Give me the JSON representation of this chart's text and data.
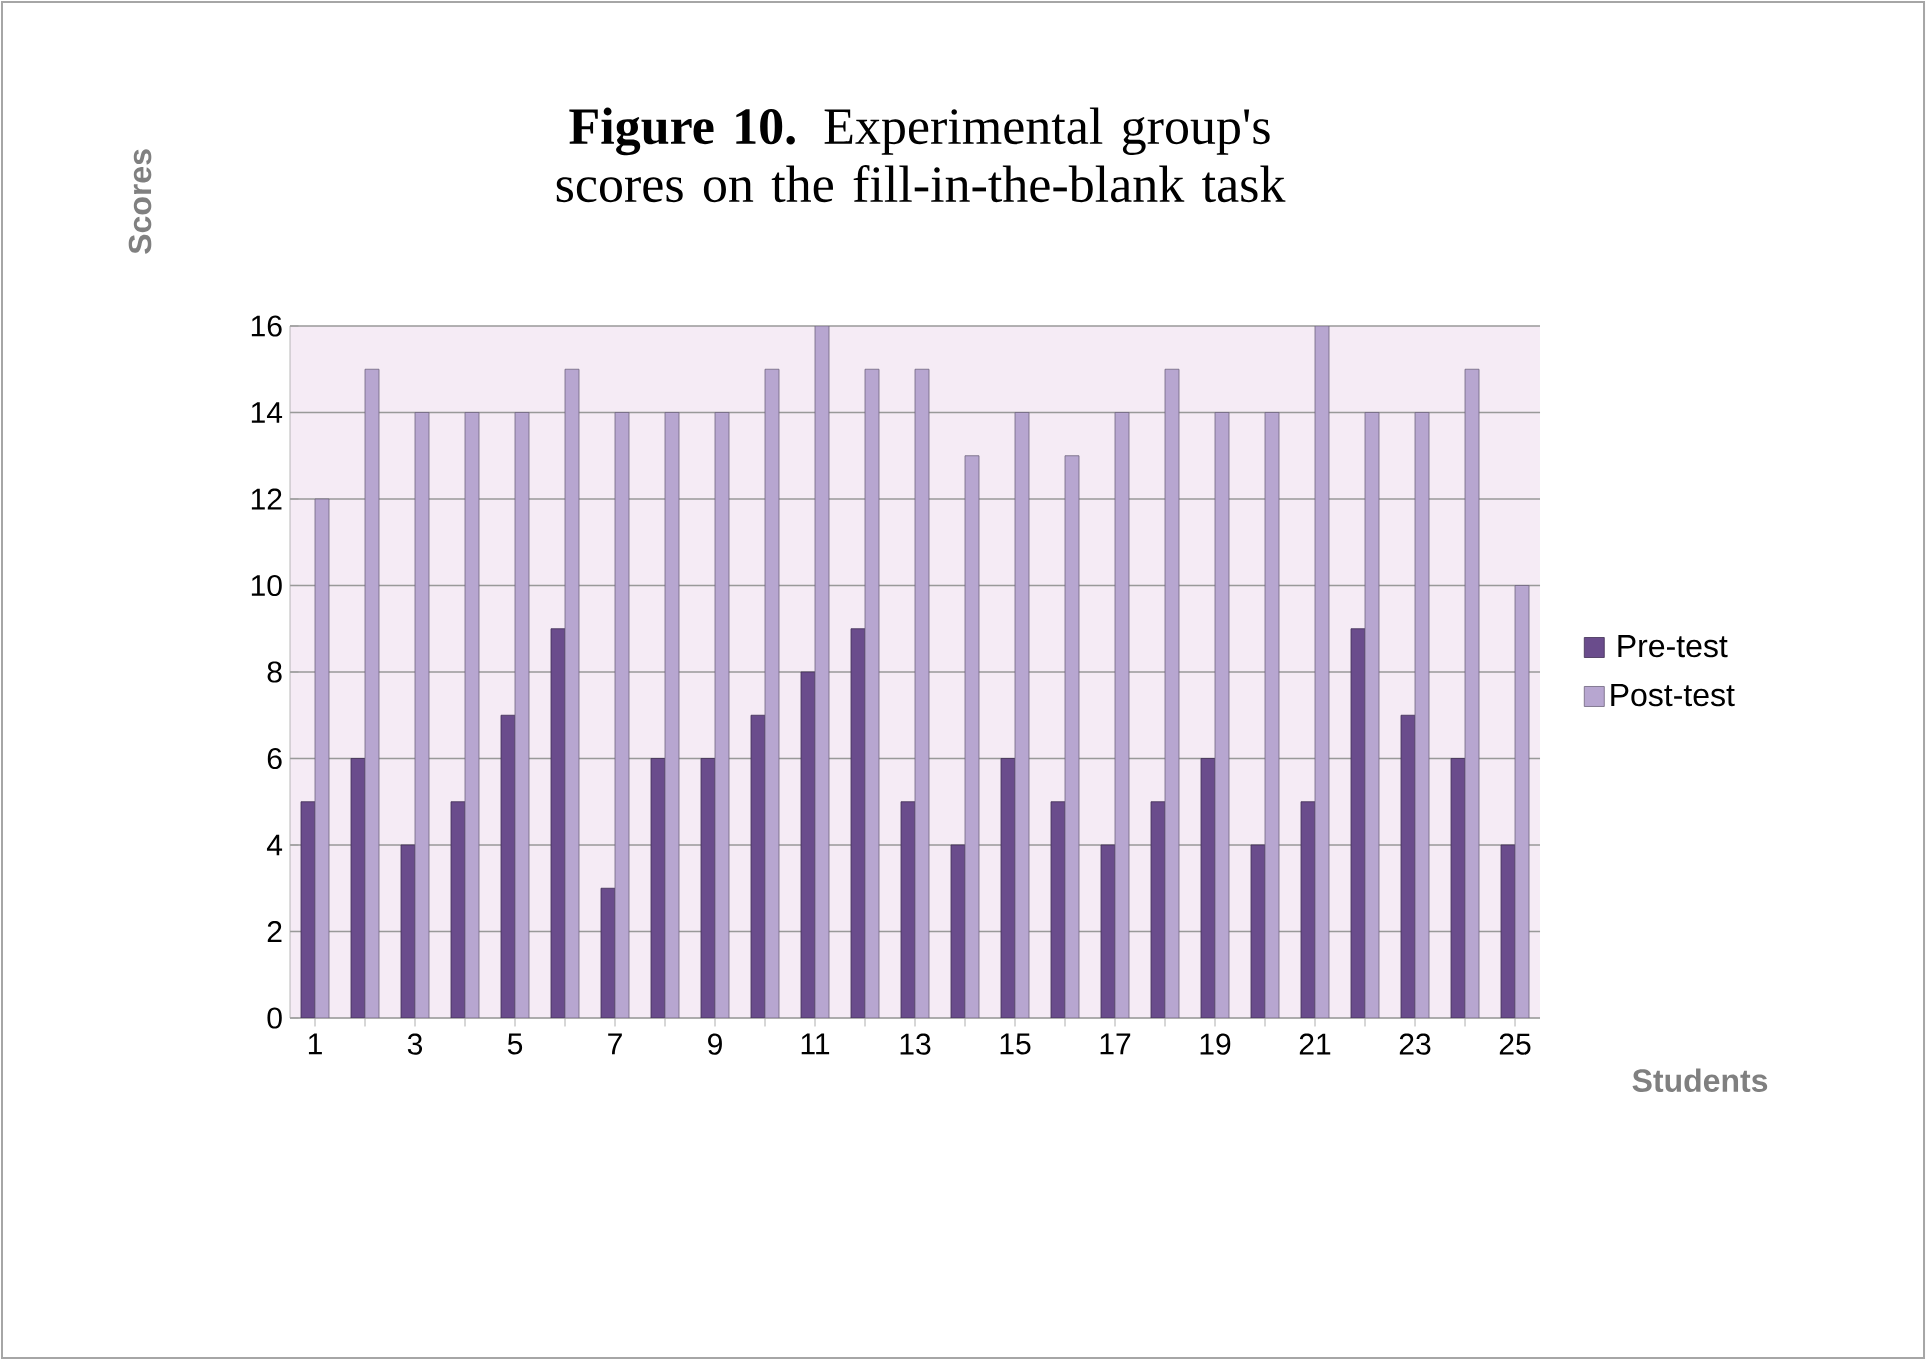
{
  "chart_data": {
    "type": "bar",
    "title": "**Figure 10.** Experimental group's scores on the fill-in-the-blank task",
    "xlabel": "Students",
    "ylabel": "Scores",
    "categories": [
      "1",
      null,
      "3",
      null,
      "5",
      null,
      "7",
      null,
      "9",
      null,
      "11",
      null,
      "13",
      null,
      "15",
      null,
      "17",
      null,
      "19",
      null,
      "21",
      null,
      "23",
      null,
      "25"
    ],
    "series": [
      {
        "name": "Pre-test",
        "color": "#6a4c8c",
        "values": [
          5,
          6,
          4,
          5,
          7,
          9,
          3,
          6,
          6,
          7,
          8,
          9,
          5,
          4,
          6,
          5,
          4,
          5,
          6,
          4,
          5,
          9,
          7,
          6,
          4
        ]
      },
      {
        "name": "Post-test",
        "color": "#b7a6d0",
        "values": [
          12,
          15,
          14,
          14,
          14,
          15,
          14,
          14,
          14,
          15,
          16,
          15,
          15,
          13,
          14,
          13,
          14,
          15,
          14,
          14,
          16,
          14,
          14,
          15,
          10
        ]
      }
    ],
    "ylim": [
      0,
      16
    ],
    "yticks": [
      0,
      2,
      4,
      6,
      8,
      10,
      12,
      14,
      16
    ],
    "grid": "y",
    "legend": "right"
  }
}
